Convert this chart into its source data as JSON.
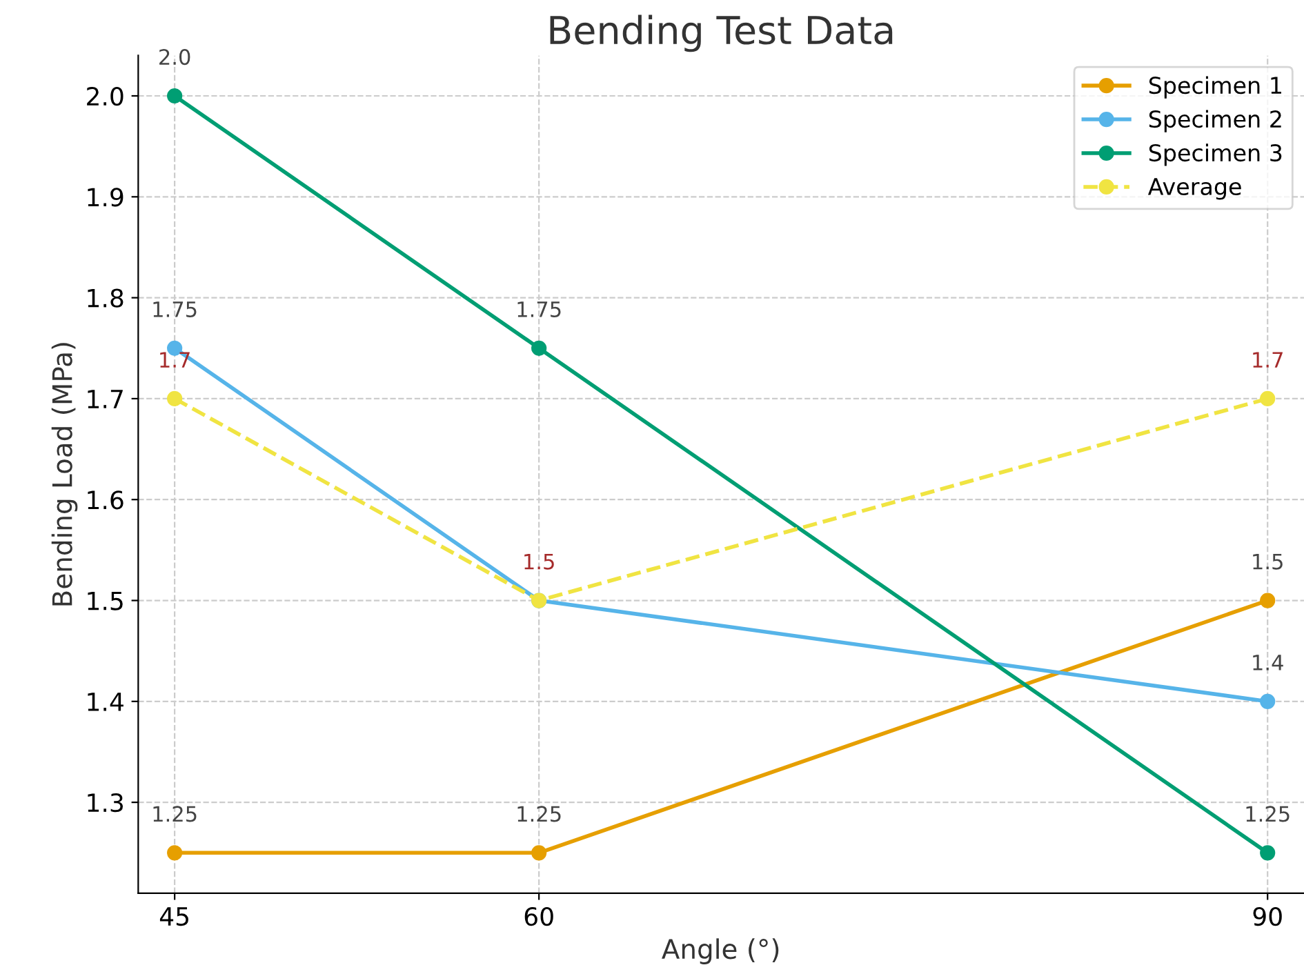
{
  "chart_data": {
    "type": "line",
    "title": "Bending Test Data",
    "xlabel": "Angle (°)",
    "ylabel": "Bending Load (MPa)",
    "x": [
      45,
      60,
      90
    ],
    "xlim": [
      43.5,
      91.5
    ],
    "xticks": [
      45,
      60,
      90
    ],
    "ylim": [
      1.21,
      2.04
    ],
    "yticks": [
      1.3,
      1.4,
      1.5,
      1.6,
      1.7,
      1.8,
      1.9,
      {
        "value": 2,
        "label": "2.0"
      }
    ],
    "grid": true,
    "legend": "top right",
    "marker": "circle",
    "series": [
      {
        "name": "Specimen 1",
        "color": "#e69f00",
        "values": [
          1.25,
          1.25,
          1.5
        ],
        "value_labels": [
          "1.25",
          "1.25",
          "1.5"
        ]
      },
      {
        "name": "Specimen 2",
        "color": "#56b4e9",
        "values": [
          1.75,
          1.5,
          1.4
        ],
        "value_labels": [
          "1.75",
          null,
          "1.4"
        ]
      },
      {
        "name": "Specimen 3",
        "color": "#009e73",
        "values": [
          2.0,
          1.75,
          1.25
        ],
        "value_labels": [
          "2.0",
          "1.75",
          "1.25"
        ]
      },
      {
        "name": "Average",
        "color": "#f0e442",
        "values": [
          1.7,
          1.5,
          1.7
        ],
        "value_labels": [
          "1.7",
          "1.5",
          "1.7"
        ],
        "line_style": "dashed"
      }
    ]
  }
}
